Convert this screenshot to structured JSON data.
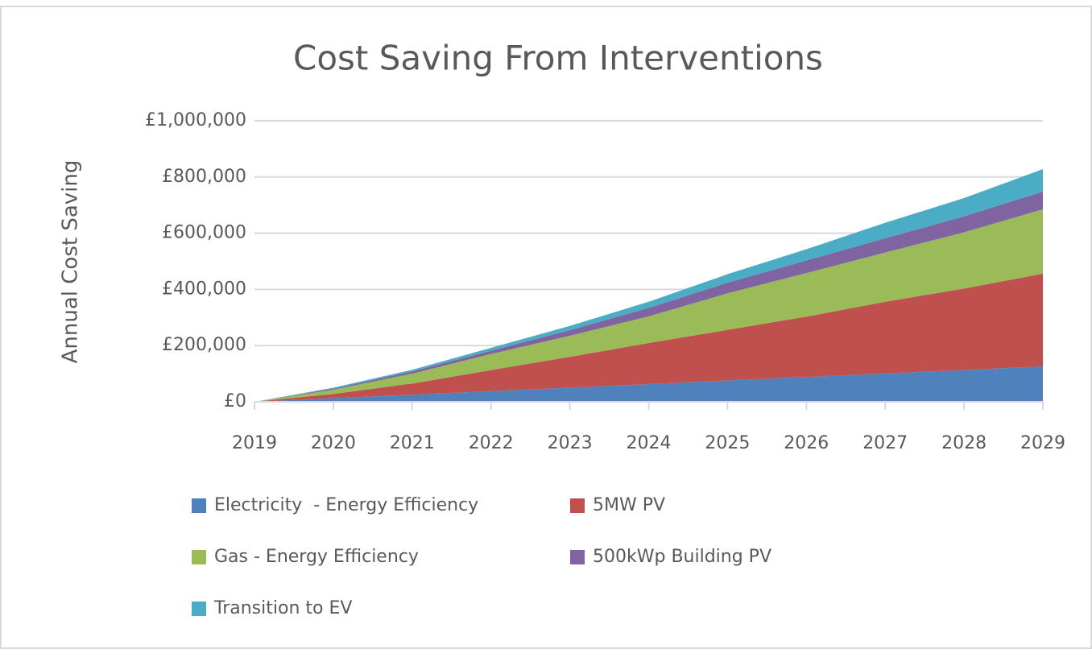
{
  "chart_data": {
    "type": "area",
    "stacked": true,
    "title": "Cost Saving From Interventions",
    "y_label": "Annual Cost Saving",
    "x": [
      2019,
      2020,
      2021,
      2022,
      2023,
      2024,
      2025,
      2026,
      2027,
      2028,
      2029
    ],
    "xlim": [
      2019,
      2029
    ],
    "ylim": [
      0,
      1000000
    ],
    "yticks": [
      {
        "value": 0,
        "label": "£0"
      },
      {
        "value": 200000,
        "label": "£200,000"
      },
      {
        "value": 400000,
        "label": "£400,000"
      },
      {
        "value": 600000,
        "label": "£600,000"
      },
      {
        "value": 800000,
        "label": "£800,000"
      },
      {
        "value": 1000000,
        "label": "£1,000,000"
      }
    ],
    "grid": true,
    "legend": "bottom",
    "series": [
      {
        "name": "Electricity  - Energy Efficiency",
        "color": "#4f81bd",
        "values": [
          0,
          13000,
          25000,
          38000,
          50000,
          63000,
          76000,
          88000,
          101000,
          113000,
          126000
        ]
      },
      {
        "name": "5MW PV",
        "color": "#c0504d",
        "values": [
          0,
          15000,
          40000,
          75000,
          110000,
          146000,
          180000,
          215000,
          255000,
          290000,
          330000
        ]
      },
      {
        "name": "Gas - Energy Efficiency",
        "color": "#9bbb59",
        "values": [
          0,
          15000,
          35000,
          57000,
          75000,
          95000,
          130000,
          155000,
          175000,
          200000,
          229000
        ]
      },
      {
        "name": "500kWp Building PV",
        "color": "#8064a2",
        "values": [
          0,
          4000,
          8000,
          12000,
          20000,
          30000,
          38000,
          45000,
          51000,
          57000,
          63000
        ]
      },
      {
        "name": "Transition to EV",
        "color": "#4bacc6",
        "values": [
          0,
          3000,
          6000,
          10000,
          15000,
          22000,
          30000,
          40000,
          55000,
          65000,
          80000
        ]
      }
    ]
  }
}
